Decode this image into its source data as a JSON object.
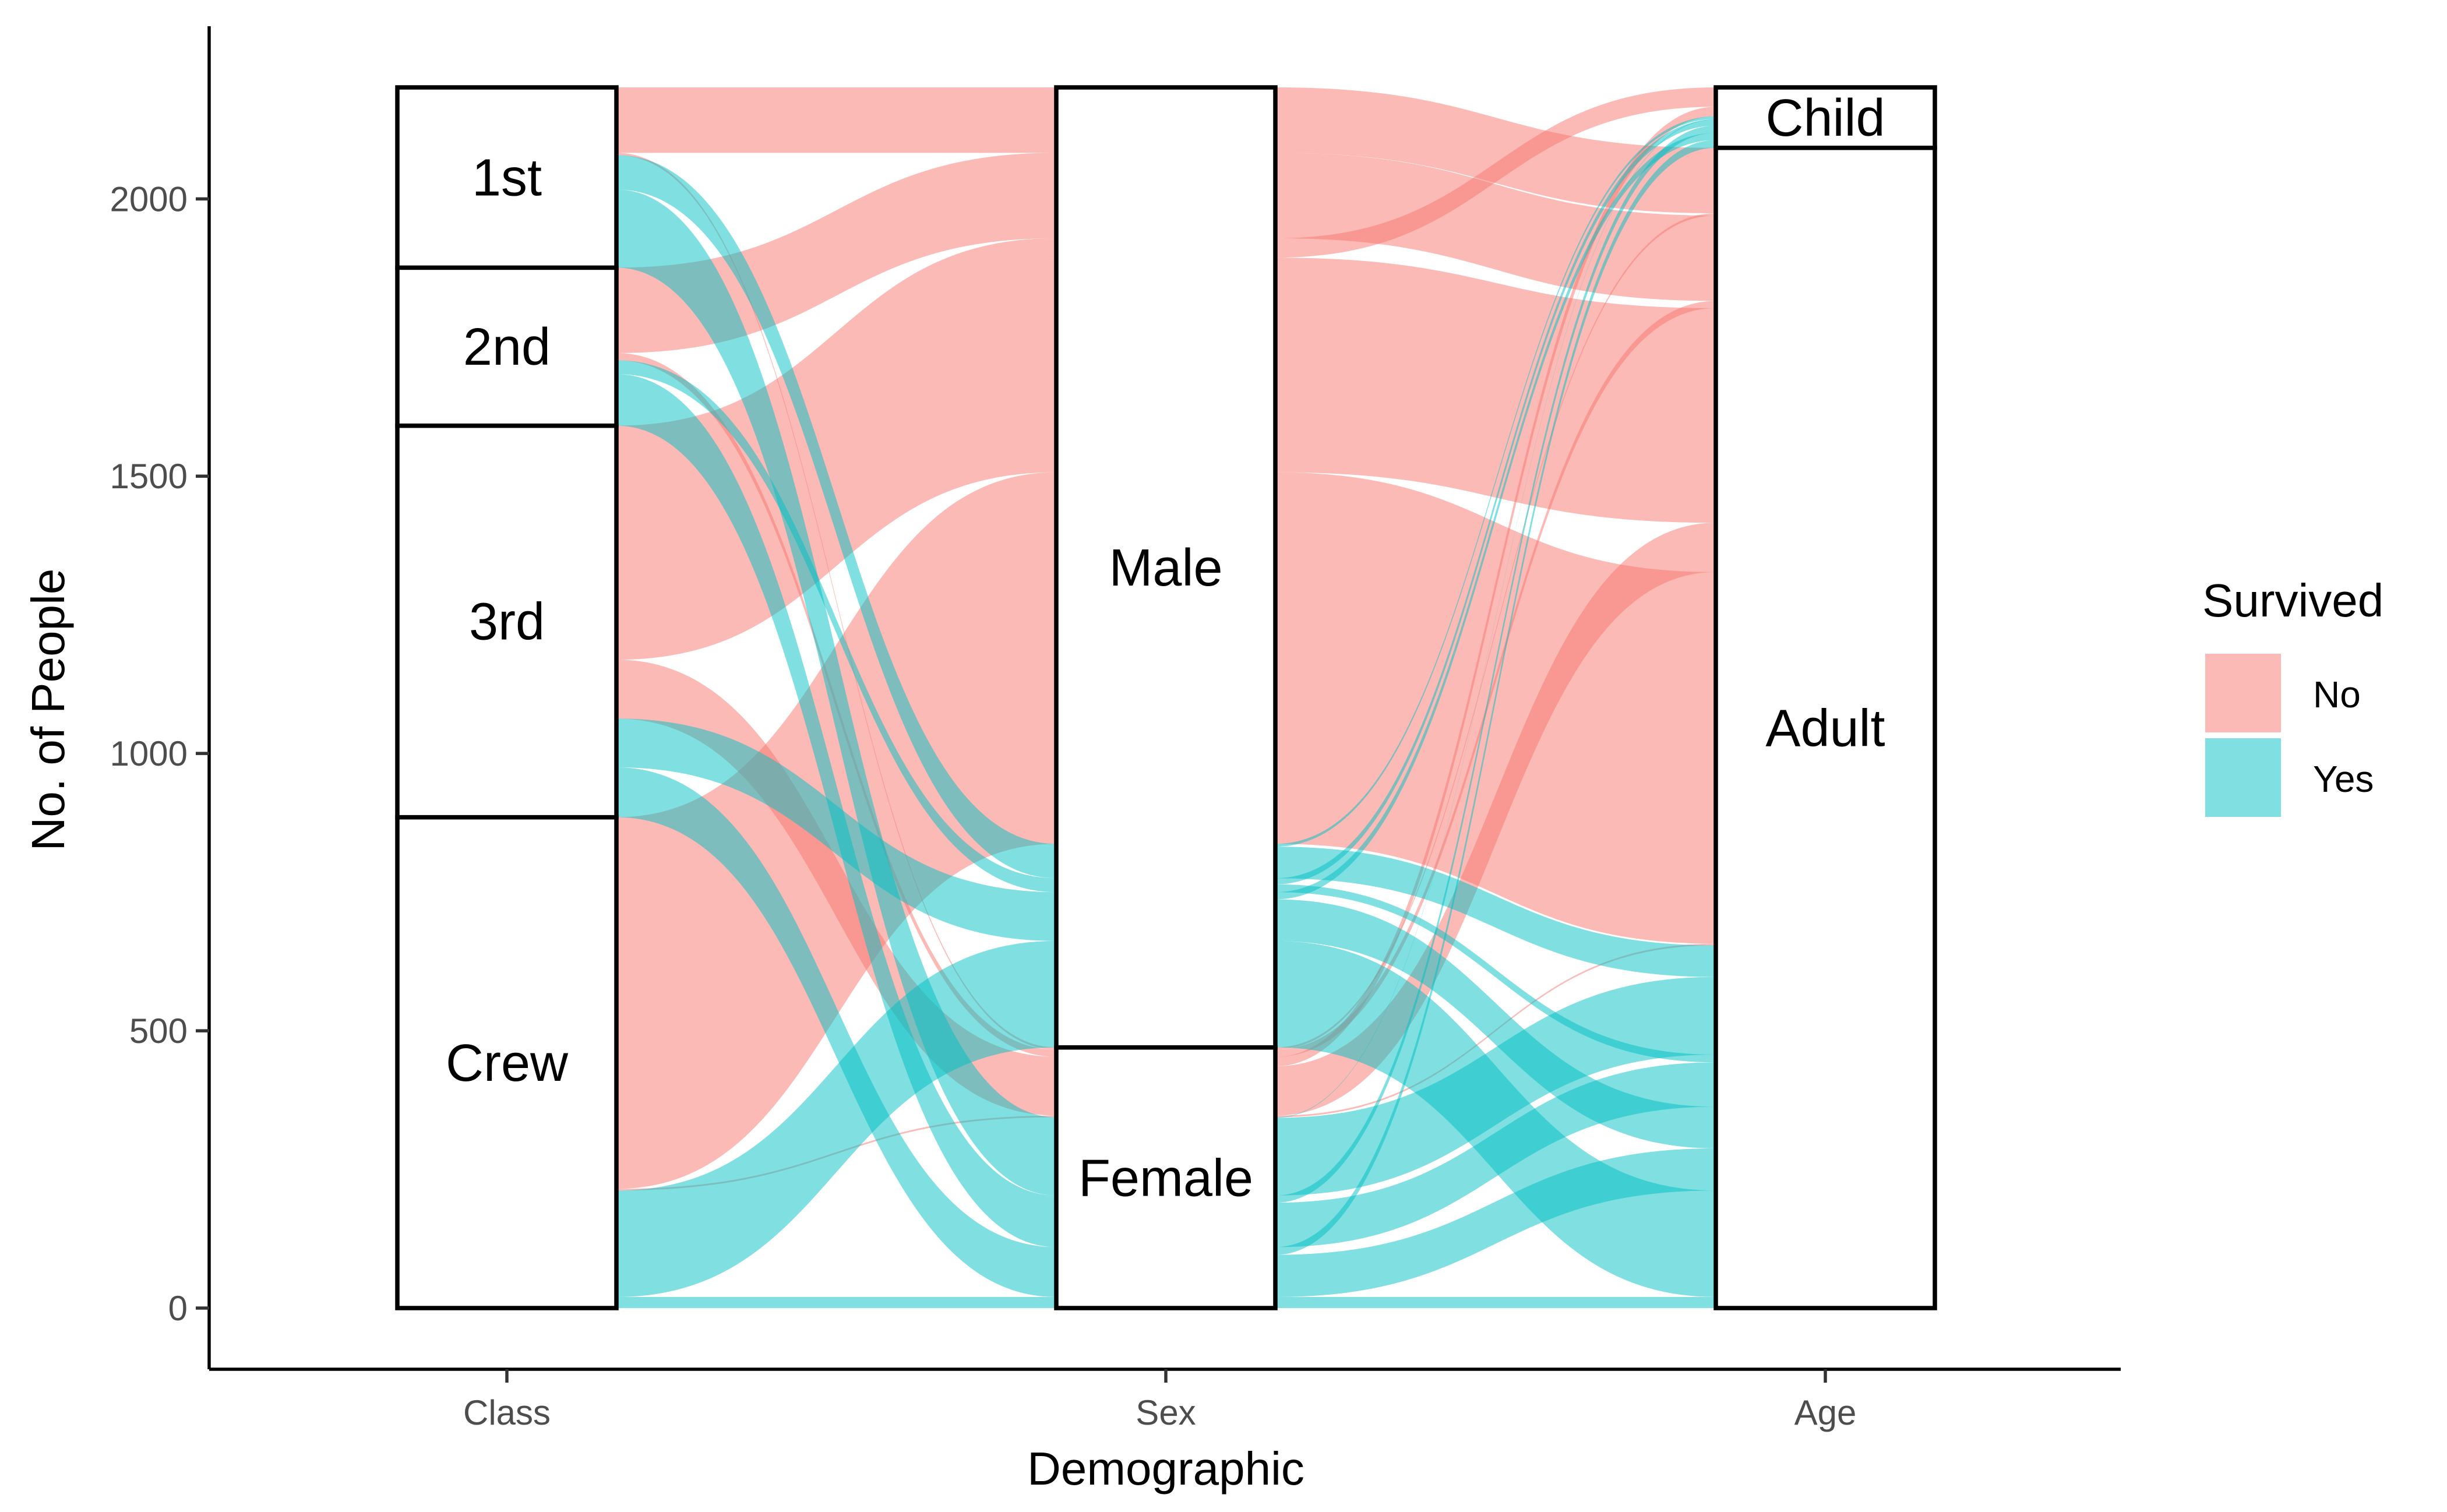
{
  "chart_data": {
    "type": "alluvial",
    "xlabel": "Demographic",
    "ylabel": "No. of  People",
    "ylim": [
      0,
      2201
    ],
    "yticks": [
      0,
      500,
      1000,
      1500,
      2000
    ],
    "axes": [
      {
        "name": "Class",
        "strata": [
          "Crew",
          "3rd",
          "2nd",
          "1st"
        ]
      },
      {
        "name": "Sex",
        "strata": [
          "Female",
          "Male"
        ]
      },
      {
        "name": "Age",
        "strata": [
          "Adult",
          "Child"
        ]
      }
    ],
    "legend": {
      "title": "Survived",
      "position": "right",
      "entries": [
        "No",
        "Yes"
      ]
    },
    "colors": {
      "No": "#F8766D",
      "Yes": "#00BFC4"
    },
    "flow_opacity": 0.5,
    "flows": [
      {
        "Class": "1st",
        "Sex": "Male",
        "Age": "Child",
        "Survived": "No",
        "value": 0
      },
      {
        "Class": "2nd",
        "Sex": "Male",
        "Age": "Child",
        "Survived": "No",
        "value": 0
      },
      {
        "Class": "3rd",
        "Sex": "Male",
        "Age": "Child",
        "Survived": "No",
        "value": 35
      },
      {
        "Class": "Crew",
        "Sex": "Male",
        "Age": "Child",
        "Survived": "No",
        "value": 0
      },
      {
        "Class": "1st",
        "Sex": "Female",
        "Age": "Child",
        "Survived": "No",
        "value": 0
      },
      {
        "Class": "2nd",
        "Sex": "Female",
        "Age": "Child",
        "Survived": "No",
        "value": 0
      },
      {
        "Class": "3rd",
        "Sex": "Female",
        "Age": "Child",
        "Survived": "No",
        "value": 17
      },
      {
        "Class": "Crew",
        "Sex": "Female",
        "Age": "Child",
        "Survived": "No",
        "value": 0
      },
      {
        "Class": "1st",
        "Sex": "Male",
        "Age": "Adult",
        "Survived": "No",
        "value": 118
      },
      {
        "Class": "2nd",
        "Sex": "Male",
        "Age": "Adult",
        "Survived": "No",
        "value": 154
      },
      {
        "Class": "3rd",
        "Sex": "Male",
        "Age": "Adult",
        "Survived": "No",
        "value": 387
      },
      {
        "Class": "Crew",
        "Sex": "Male",
        "Age": "Adult",
        "Survived": "No",
        "value": 670
      },
      {
        "Class": "1st",
        "Sex": "Female",
        "Age": "Adult",
        "Survived": "No",
        "value": 4
      },
      {
        "Class": "2nd",
        "Sex": "Female",
        "Age": "Adult",
        "Survived": "No",
        "value": 13
      },
      {
        "Class": "3rd",
        "Sex": "Female",
        "Age": "Adult",
        "Survived": "No",
        "value": 89
      },
      {
        "Class": "Crew",
        "Sex": "Female",
        "Age": "Adult",
        "Survived": "No",
        "value": 3
      },
      {
        "Class": "1st",
        "Sex": "Male",
        "Age": "Child",
        "Survived": "Yes",
        "value": 5
      },
      {
        "Class": "2nd",
        "Sex": "Male",
        "Age": "Child",
        "Survived": "Yes",
        "value": 11
      },
      {
        "Class": "3rd",
        "Sex": "Male",
        "Age": "Child",
        "Survived": "Yes",
        "value": 13
      },
      {
        "Class": "Crew",
        "Sex": "Male",
        "Age": "Child",
        "Survived": "Yes",
        "value": 0
      },
      {
        "Class": "1st",
        "Sex": "Female",
        "Age": "Child",
        "Survived": "Yes",
        "value": 1
      },
      {
        "Class": "2nd",
        "Sex": "Female",
        "Age": "Child",
        "Survived": "Yes",
        "value": 13
      },
      {
        "Class": "3rd",
        "Sex": "Female",
        "Age": "Child",
        "Survived": "Yes",
        "value": 14
      },
      {
        "Class": "Crew",
        "Sex": "Female",
        "Age": "Child",
        "Survived": "Yes",
        "value": 0
      },
      {
        "Class": "1st",
        "Sex": "Male",
        "Age": "Adult",
        "Survived": "Yes",
        "value": 57
      },
      {
        "Class": "2nd",
        "Sex": "Male",
        "Age": "Adult",
        "Survived": "Yes",
        "value": 14
      },
      {
        "Class": "3rd",
        "Sex": "Male",
        "Age": "Adult",
        "Survived": "Yes",
        "value": 75
      },
      {
        "Class": "Crew",
        "Sex": "Male",
        "Age": "Adult",
        "Survived": "Yes",
        "value": 192
      },
      {
        "Class": "1st",
        "Sex": "Female",
        "Age": "Adult",
        "Survived": "Yes",
        "value": 140
      },
      {
        "Class": "2nd",
        "Sex": "Female",
        "Age": "Adult",
        "Survived": "Yes",
        "value": 80
      },
      {
        "Class": "3rd",
        "Sex": "Female",
        "Age": "Adult",
        "Survived": "Yes",
        "value": 76
      },
      {
        "Class": "Crew",
        "Sex": "Female",
        "Age": "Adult",
        "Survived": "Yes",
        "value": 20
      }
    ]
  }
}
